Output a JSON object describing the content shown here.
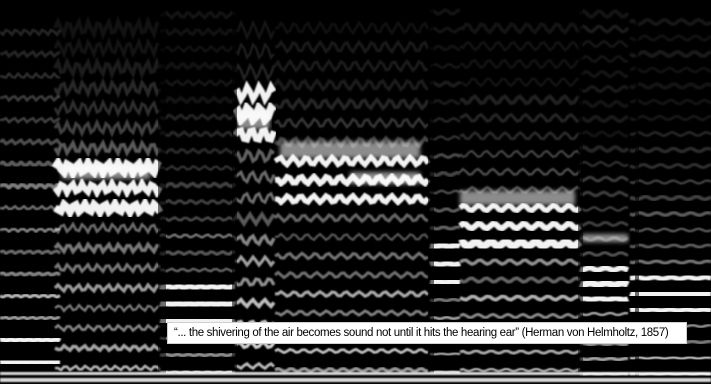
{
  "image": {
    "subject": "spectrogram",
    "palette": {
      "background": "#000000",
      "harmonic": "#ffffff",
      "caption_bg": "#ffffff",
      "caption_text": "#000000"
    }
  },
  "caption": {
    "text": "“... the shivering of the air becomes sound not until it hits the hearing ear” (Herman von Helmholtz, 1857)"
  }
}
